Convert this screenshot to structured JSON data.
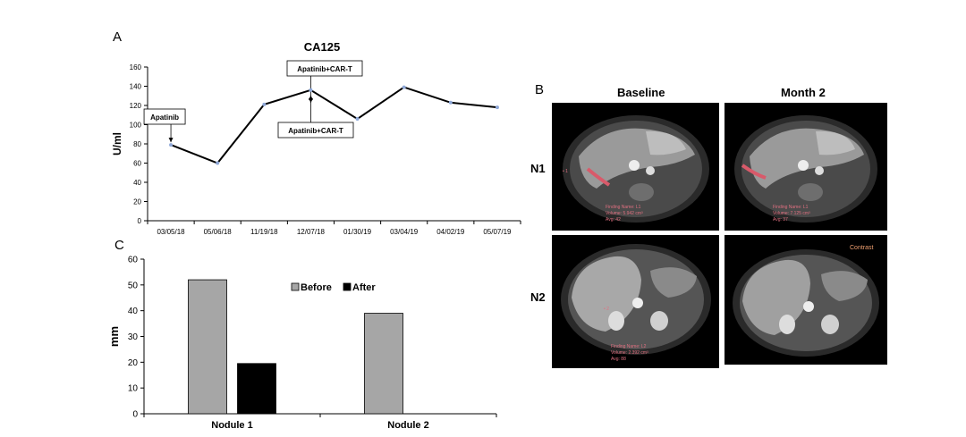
{
  "panel_letters": {
    "a": "A",
    "b": "B",
    "c": "C"
  },
  "chart_data": [
    {
      "type": "line",
      "title": "CA125",
      "ylabel": "U/ml",
      "xlabel": "",
      "categories": [
        "03/05/18",
        "05/06/18",
        "11/19/18",
        "12/07/18",
        "01/30/19",
        "03/04/19",
        "04/02/19",
        "05/07/19"
      ],
      "series": [
        {
          "values": [
            79,
            60,
            121,
            136,
            106,
            139,
            123,
            118
          ]
        }
      ],
      "ylim": [
        0,
        160
      ],
      "yticks": [
        0,
        20,
        40,
        60,
        80,
        100,
        120,
        140,
        160
      ],
      "annotations": [
        {
          "text": "Apatinib",
          "category_index": 0
        },
        {
          "text": "Apatinib+CAR-T",
          "category_index": 3
        },
        {
          "text": "Apatinib+CAR-T",
          "category_index": 3.5
        }
      ],
      "grid": false,
      "colors": {
        "line": "#000000",
        "marker": "#8fa8d8"
      }
    },
    {
      "type": "bar",
      "categories": [
        "Nodule 1",
        "Nodule 2"
      ],
      "series": [
        {
          "name": "Before",
          "values": [
            52,
            39
          ]
        },
        {
          "name": "After",
          "values": [
            19.5,
            0
          ]
        }
      ],
      "ylabel": "mm",
      "xlabel": "",
      "ylim": [
        0,
        60
      ],
      "yticks": [
        0,
        10,
        20,
        30,
        40,
        50,
        60
      ],
      "legend": "top-right",
      "colors": {
        "Before": "#a6a6a6",
        "After": "#000000"
      }
    }
  ],
  "imaging": {
    "columns": [
      "Baseline",
      "Month 2"
    ],
    "rows": [
      "N1",
      "N2"
    ],
    "overlays": {
      "n1_baseline": [
        "Finding Name: L1",
        "Volume: 5.942 cm³",
        "Avg: 42"
      ],
      "n1_month2": [
        "Finding Name: L1",
        "Volume: 7.125 cm³",
        "Avg: 37"
      ],
      "n2_baseline": [
        "Finding Name: L2",
        "Volume: 2.392 cm³",
        "Avg: 88"
      ],
      "n2_month2_tag": "Contrast"
    }
  }
}
